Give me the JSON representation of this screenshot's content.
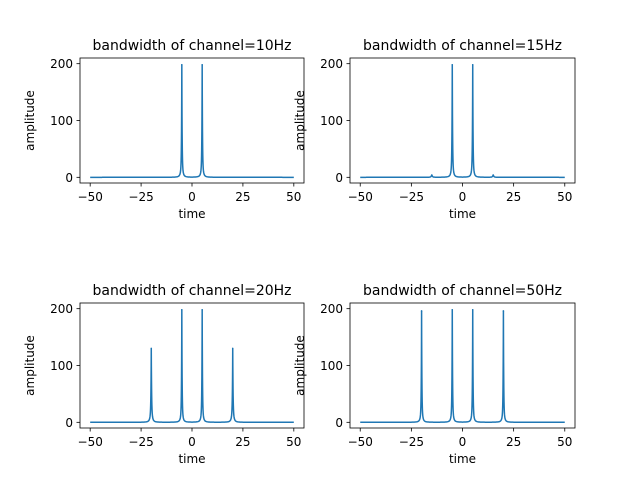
{
  "colors": {
    "line": "#1f77b4",
    "axes": "#000000",
    "background": "#ffffff"
  },
  "chart_data": [
    {
      "type": "line",
      "title": "bandwidth of channel=10Hz",
      "xlabel": "time",
      "ylabel": "amplitude",
      "xlim": [
        -55,
        55
      ],
      "ylim": [
        -10,
        210
      ],
      "xticks": [
        -50,
        -25,
        0,
        25,
        50
      ],
      "yticks": [
        0,
        100,
        200
      ],
      "grid": false,
      "series": [
        {
          "peaks": [
            {
              "x": -5,
              "y": 198,
              "base": 42
            },
            {
              "x": 5,
              "y": 198,
              "base": 44
            }
          ]
        }
      ]
    },
    {
      "type": "line",
      "title": "bandwidth of channel=15Hz",
      "xlabel": "time",
      "ylabel": "amplitude",
      "xlim": [
        -55,
        55
      ],
      "ylim": [
        -10,
        210
      ],
      "xticks": [
        -50,
        -25,
        0,
        25,
        50
      ],
      "yticks": [
        0,
        100,
        200
      ],
      "grid": false,
      "series": [
        {
          "peaks": [
            {
              "x": -15,
              "y": 4,
              "base": 3
            },
            {
              "x": -5,
              "y": 198,
              "base": 45
            },
            {
              "x": 5,
              "y": 198,
              "base": 45
            },
            {
              "x": 15,
              "y": 4,
              "base": 3
            }
          ]
        }
      ]
    },
    {
      "type": "line",
      "title": "bandwidth of channel=20Hz",
      "xlabel": "time",
      "ylabel": "amplitude",
      "xlim": [
        -55,
        55
      ],
      "ylim": [
        -10,
        210
      ],
      "xticks": [
        -50,
        -25,
        0,
        25,
        50
      ],
      "yticks": [
        0,
        100,
        200
      ],
      "grid": false,
      "series": [
        {
          "peaks": [
            {
              "x": -20,
              "y": 130,
              "base": 40
            },
            {
              "x": -5,
              "y": 198,
              "base": 40
            },
            {
              "x": 5,
              "y": 198,
              "base": 42
            },
            {
              "x": 20,
              "y": 130,
              "base": 40
            }
          ]
        }
      ]
    },
    {
      "type": "line",
      "title": "bandwidth of channel=50Hz",
      "xlabel": "time",
      "ylabel": "amplitude",
      "xlim": [
        -55,
        55
      ],
      "ylim": [
        -10,
        210
      ],
      "xticks": [
        -50,
        -25,
        0,
        25,
        50
      ],
      "yticks": [
        0,
        100,
        200
      ],
      "grid": false,
      "series": [
        {
          "peaks": [
            {
              "x": -20,
              "y": 196,
              "base": 40
            },
            {
              "x": -5,
              "y": 198,
              "base": 42
            },
            {
              "x": 5,
              "y": 198,
              "base": 42
            },
            {
              "x": 20,
              "y": 196,
              "base": 40
            }
          ]
        }
      ]
    }
  ]
}
